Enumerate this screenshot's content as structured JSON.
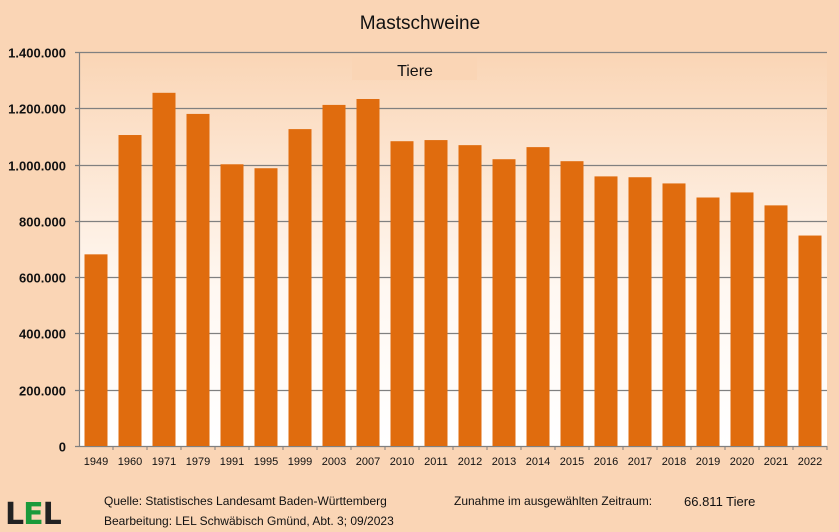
{
  "chart_data": {
    "type": "bar",
    "title": "Mastschweine",
    "series_label": "Tiere",
    "categories": [
      "1949",
      "1960",
      "1971",
      "1979",
      "1991",
      "1995",
      "1999",
      "2003",
      "2007",
      "2010",
      "2011",
      "2012",
      "2013",
      "2014",
      "2015",
      "2016",
      "2017",
      "2018",
      "2019",
      "2020",
      "2021",
      "2022"
    ],
    "values": [
      681000,
      1105000,
      1255000,
      1180000,
      1001000,
      987000,
      1126000,
      1212000,
      1233000,
      1083000,
      1087000,
      1069000,
      1019000,
      1062000,
      1012000,
      958000,
      955000,
      933000,
      883000,
      901000,
      855000,
      747811
    ],
    "ylim": [
      0,
      1400000
    ],
    "yticks": [
      0,
      200000,
      400000,
      600000,
      800000,
      1000000,
      1200000,
      1400000
    ],
    "ytick_labels": [
      "0",
      "200.000",
      "400.000",
      "600.000",
      "800.000",
      "1.000.000",
      "1.200.000",
      "1.400.000"
    ],
    "grid": true,
    "bar_color": "#e06c0e",
    "background_color": "#fad5b5"
  },
  "footer": {
    "logo": "LEL",
    "source": "Quelle: Statistisches Landesamt Baden-Württemberg",
    "editor": "Bearbeitung: LEL Schwäbisch Gmünd, Abt. 3; 09/2023",
    "change_label": "Zunahme im ausgewählten Zeitraum:",
    "change_value": "66.811 Tiere"
  }
}
